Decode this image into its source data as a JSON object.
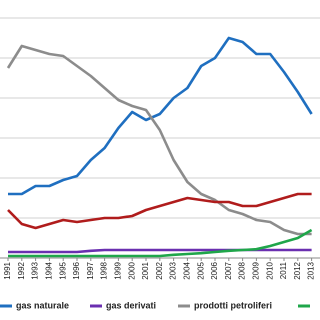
{
  "chart_data": {
    "type": "line",
    "categories": [
      "1991",
      "1992",
      "1993",
      "1994",
      "1995",
      "1996",
      "1997",
      "1998",
      "1999",
      "2000",
      "2001",
      "2002",
      "2003",
      "2004",
      "2005",
      "2006",
      "2007",
      "2008",
      "2009",
      "2010",
      "2011",
      "2012",
      "2013"
    ],
    "series": [
      {
        "name": "gas naturale",
        "color": "#1f6fc0",
        "values": [
          1.6,
          1.6,
          1.8,
          1.8,
          1.95,
          2.05,
          2.45,
          2.75,
          3.25,
          3.65,
          3.45,
          3.6,
          4.0,
          4.25,
          4.8,
          5.0,
          5.5,
          5.4,
          5.1,
          5.1,
          4.65,
          4.15,
          3.6
        ]
      },
      {
        "name": "gas derivati",
        "color": "#6a2fb0",
        "values": [
          0.15,
          0.15,
          0.15,
          0.15,
          0.15,
          0.15,
          0.18,
          0.2,
          0.2,
          0.2,
          0.2,
          0.2,
          0.2,
          0.2,
          0.2,
          0.2,
          0.2,
          0.2,
          0.2,
          0.2,
          0.2,
          0.2,
          0.2
        ]
      },
      {
        "name": "prodotti petroliferi",
        "color": "#8c8c8c",
        "values": [
          4.75,
          5.3,
          5.2,
          5.1,
          5.05,
          4.8,
          4.55,
          4.25,
          3.95,
          3.8,
          3.7,
          3.2,
          2.45,
          1.9,
          1.6,
          1.45,
          1.2,
          1.1,
          0.95,
          0.9,
          0.7,
          0.6,
          0.6
        ]
      },
      {
        "color": "#1fa64a",
        "values": [
          0.05,
          0.05,
          0.05,
          0.05,
          0.05,
          0.05,
          0.05,
          0.05,
          0.05,
          0.05,
          0.05,
          0.05,
          0.08,
          0.1,
          0.12,
          0.15,
          0.18,
          0.2,
          0.22,
          0.3,
          0.4,
          0.5,
          0.7
        ]
      },
      {
        "color": "#b01c1c",
        "values": [
          1.2,
          0.85,
          0.75,
          0.85,
          0.95,
          0.9,
          0.95,
          1.0,
          1.0,
          1.05,
          1.2,
          1.3,
          1.4,
          1.5,
          1.45,
          1.4,
          1.4,
          1.3,
          1.3,
          1.4,
          1.5,
          1.6,
          1.6
        ]
      }
    ],
    "ylim": [
      0,
      6.2
    ],
    "yticks": [
      0,
      1,
      2,
      3,
      4,
      5,
      6
    ],
    "grid": true
  }
}
